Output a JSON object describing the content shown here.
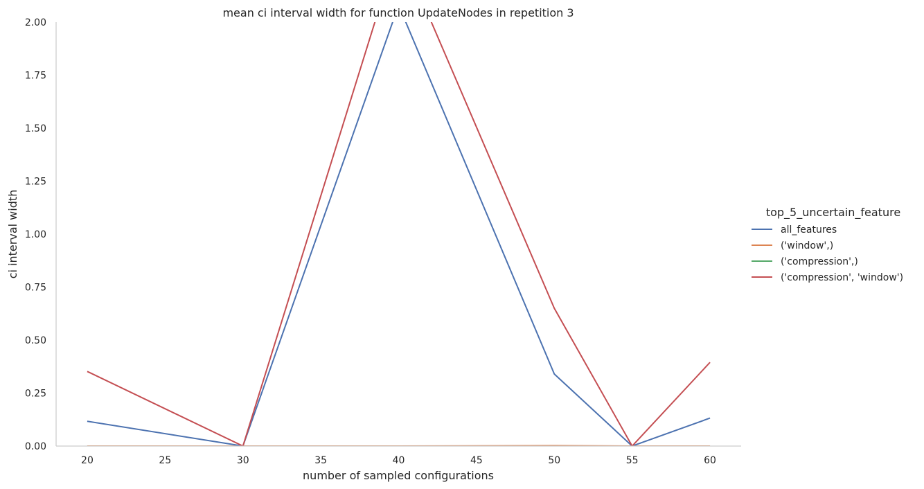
{
  "chart_data": {
    "type": "line",
    "title": "mean ci interval width for function UpdateNodes in repetition 3",
    "xlabel": "number of sampled configurations",
    "ylabel": "ci interval width",
    "xlim": [
      18,
      62
    ],
    "ylim": [
      0,
      2.0
    ],
    "xticks": [
      20,
      25,
      30,
      35,
      40,
      45,
      50,
      55,
      60
    ],
    "yticks": [
      0.0,
      0.25,
      0.5,
      0.75,
      1.0,
      1.25,
      1.5,
      1.75,
      2.0
    ],
    "ytick_labels": [
      "0.00",
      "0.25",
      "0.50",
      "0.75",
      "1.00",
      "1.25",
      "1.50",
      "1.75",
      "2.00"
    ],
    "grid": false,
    "legend": {
      "title": "top_5_uncertain_feature",
      "placement": "right"
    },
    "series": [
      {
        "name": "all_features",
        "color": "#4c72b0",
        "x": [
          20,
          30,
          40,
          50,
          55,
          60
        ],
        "y": [
          0.117,
          0.0,
          2.08,
          0.34,
          0.0,
          0.132
        ]
      },
      {
        "name": "('window',)",
        "color": "#dd8452",
        "x": [
          20,
          30,
          40,
          50,
          55,
          60
        ],
        "y": [
          0.0,
          0.0,
          0.0,
          0.002,
          0.0,
          0.0
        ]
      },
      {
        "name": "('compression',)",
        "color": "#55a868",
        "x": [
          20,
          30,
          40,
          50,
          55,
          60
        ],
        "y": [
          0.0,
          0.0,
          0.0,
          0.0,
          0.0,
          0.0
        ]
      },
      {
        "name": "('compression', 'window')",
        "color": "#c44e52",
        "x": [
          20,
          30,
          40,
          50,
          55,
          60
        ],
        "y": [
          0.352,
          0.0,
          2.36,
          0.65,
          0.0,
          0.395
        ]
      }
    ]
  }
}
